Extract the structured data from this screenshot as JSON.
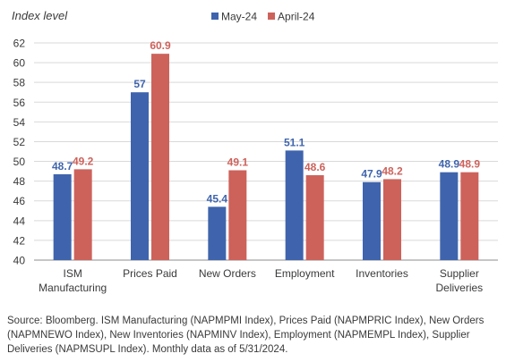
{
  "chart_data": {
    "type": "bar",
    "ylabel": "Index level",
    "categories": [
      "ISM\nManufacturing",
      "Prices Paid",
      "New Orders",
      "Employment",
      "Inventories",
      "Supplier\nDeliveries"
    ],
    "series": [
      {
        "name": "May-24",
        "color": "#3f64ad",
        "values": [
          48.7,
          57,
          45.4,
          51.1,
          47.9,
          48.9
        ],
        "labels": [
          "48.7",
          "57",
          "45.4",
          "51.1",
          "47.9",
          "48.9"
        ]
      },
      {
        "name": "April-24",
        "color": "#cd625b",
        "values": [
          49.2,
          60.9,
          49.1,
          48.6,
          48.2,
          48.9
        ],
        "labels": [
          "49.2",
          "60.9",
          "49.1",
          "48.6",
          "48.2",
          "48.9"
        ]
      }
    ],
    "ylim": [
      40,
      62
    ],
    "yticks": [
      40,
      42,
      44,
      46,
      48,
      50,
      52,
      54,
      56,
      58,
      60,
      62
    ],
    "grid": true,
    "legend": "top-center"
  },
  "source_note": "Source: Bloomberg. ISM Manufacturing (NAPMPMI Index), Prices Paid (NAPMPRIC Index), New Orders (NAPMNEWO Index), New Inventories (NAPMINV Index), Employment (NAPMEMPL Index), Supplier Deliveries (NAPMSUPL Index).   Monthly data as of 5/31/2024."
}
